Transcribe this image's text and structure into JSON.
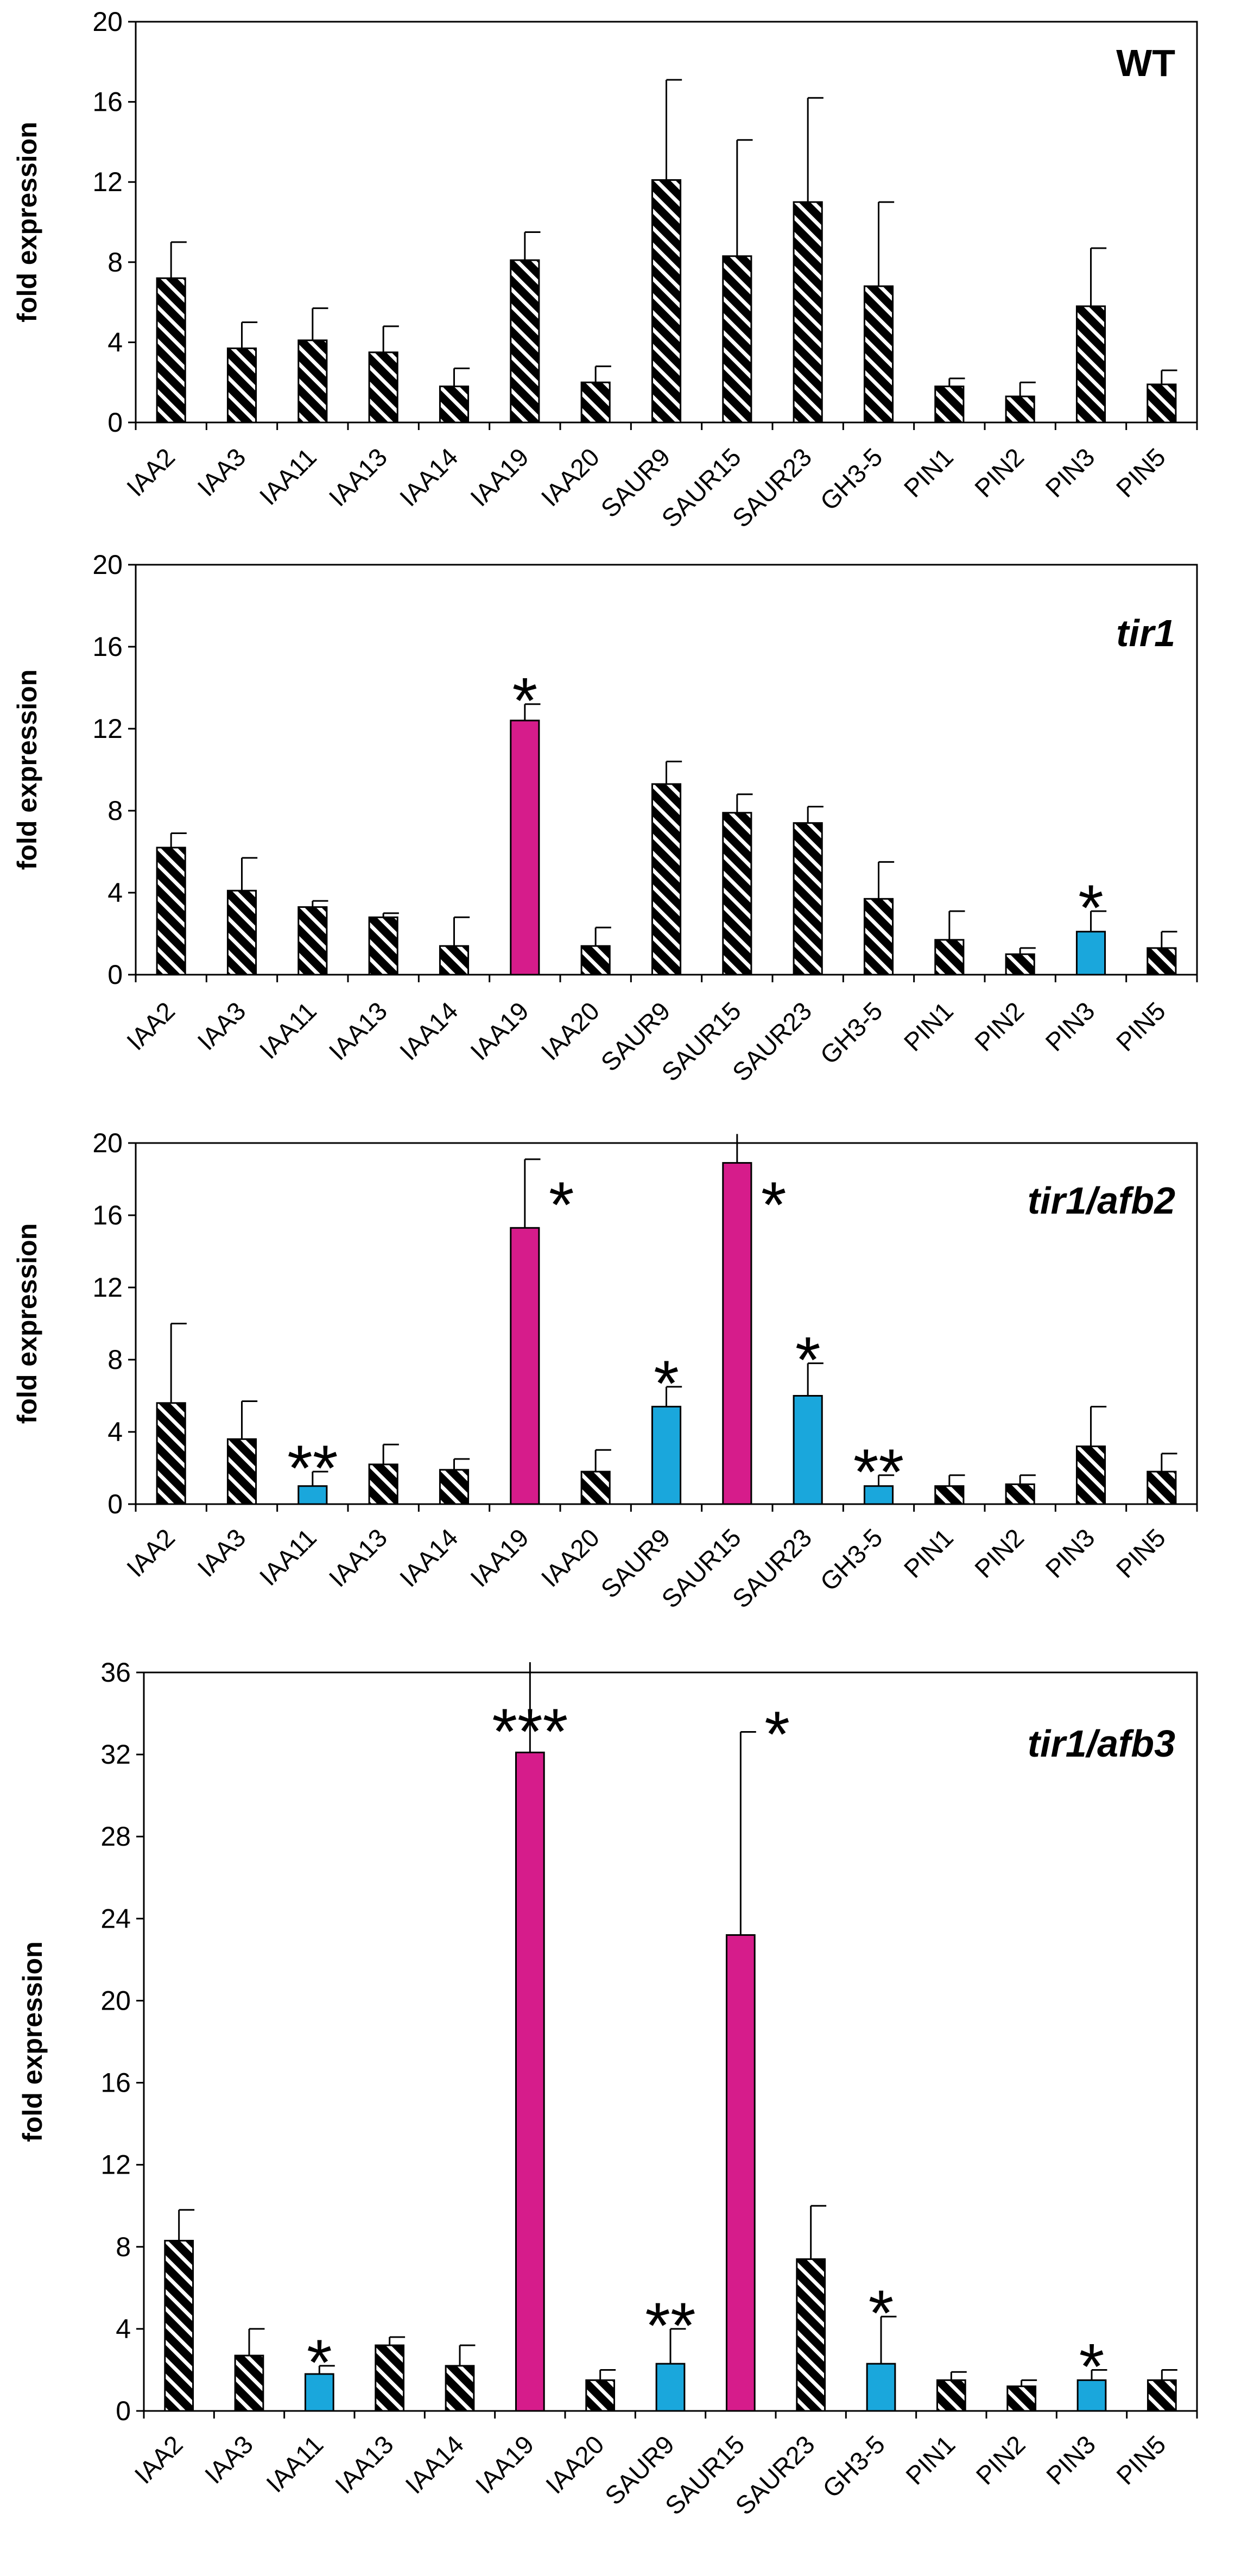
{
  "colors": {
    "hatch_dark": "#000000",
    "hatch_light": "#ffffff",
    "up_magenta": "#d61c8b",
    "down_cyan": "#1aa7dc"
  },
  "chart_data": [
    {
      "type": "bar",
      "title": "WT",
      "ylabel": "fold expression",
      "ylim": [
        0,
        20
      ],
      "yticks": [
        0,
        4,
        8,
        12,
        16,
        20
      ],
      "categories": [
        "IAA2",
        "IAA3",
        "IAA11",
        "IAA13",
        "IAA14",
        "IAA19",
        "IAA20",
        "SAUR9",
        "SAUR15",
        "SAUR23",
        "GH3-5",
        "PIN1",
        "PIN2",
        "PIN3",
        "PIN5"
      ],
      "values": [
        7.2,
        3.7,
        4.1,
        3.5,
        1.8,
        8.1,
        2.0,
        12.1,
        8.3,
        11.0,
        6.8,
        1.8,
        1.3,
        5.8,
        1.9
      ],
      "errors": [
        1.8,
        1.3,
        1.6,
        1.3,
        0.9,
        1.4,
        0.8,
        5.0,
        5.8,
        5.2,
        4.2,
        0.4,
        0.7,
        2.9,
        0.7
      ],
      "styles": [
        "hatch",
        "hatch",
        "hatch",
        "hatch",
        "hatch",
        "hatch",
        "hatch",
        "hatch",
        "hatch",
        "hatch",
        "hatch",
        "hatch",
        "hatch",
        "hatch",
        "hatch"
      ],
      "annotations": []
    },
    {
      "type": "bar",
      "title": "tir1",
      "ylabel": "fold expression",
      "ylim": [
        0,
        20
      ],
      "yticks": [
        0,
        4,
        8,
        12,
        16,
        20
      ],
      "categories": [
        "IAA2",
        "IAA3",
        "IAA11",
        "IAA13",
        "IAA14",
        "IAA19",
        "IAA20",
        "SAUR9",
        "SAUR15",
        "SAUR23",
        "GH3-5",
        "PIN1",
        "PIN2",
        "PIN3",
        "PIN5"
      ],
      "values": [
        6.2,
        4.1,
        3.3,
        2.8,
        1.4,
        12.4,
        1.4,
        9.3,
        7.9,
        7.4,
        3.7,
        1.7,
        1.0,
        2.1,
        1.3
      ],
      "errors": [
        0.7,
        1.6,
        0.3,
        0.2,
        1.4,
        0.8,
        0.9,
        1.1,
        0.9,
        0.8,
        1.8,
        1.4,
        0.3,
        1.0,
        0.8
      ],
      "styles": [
        "hatch",
        "hatch",
        "hatch",
        "hatch",
        "hatch",
        "up",
        "hatch",
        "hatch",
        "hatch",
        "hatch",
        "hatch",
        "hatch",
        "hatch",
        "down",
        "hatch"
      ],
      "annotations": [
        {
          "category": "IAA19",
          "text": "*"
        },
        {
          "category": "PIN3",
          "text": "*"
        }
      ]
    },
    {
      "type": "bar",
      "title": "tir1/afb2",
      "ylabel": "fold expression",
      "ylim": [
        0,
        20
      ],
      "yticks": [
        0,
        4,
        8,
        12,
        16,
        20
      ],
      "categories": [
        "IAA2",
        "IAA3",
        "IAA11",
        "IAA13",
        "IAA14",
        "IAA19",
        "IAA20",
        "SAUR9",
        "SAUR15",
        "SAUR23",
        "GH3-5",
        "PIN1",
        "PIN2",
        "PIN3",
        "PIN5"
      ],
      "values": [
        5.6,
        3.6,
        1.0,
        2.2,
        1.9,
        15.3,
        1.8,
        5.4,
        18.9,
        6.0,
        1.0,
        1.0,
        1.1,
        3.2,
        1.8
      ],
      "errors": [
        4.4,
        2.1,
        0.8,
        1.1,
        0.6,
        3.8,
        1.2,
        1.1,
        1.6,
        1.8,
        0.6,
        0.6,
        0.5,
        2.2,
        1.0
      ],
      "styles": [
        "hatch",
        "hatch",
        "down",
        "hatch",
        "hatch",
        "up",
        "hatch",
        "down",
        "up",
        "down",
        "down",
        "hatch",
        "hatch",
        "hatch",
        "hatch"
      ],
      "annotations": [
        {
          "category": "IAA11",
          "text": "**"
        },
        {
          "category": "IAA19",
          "text": "*"
        },
        {
          "category": "SAUR9",
          "text": "*"
        },
        {
          "category": "SAUR15",
          "text": "*"
        },
        {
          "category": "SAUR23",
          "text": "*"
        },
        {
          "category": "GH3-5",
          "text": "**"
        }
      ]
    },
    {
      "type": "bar",
      "title": "tir1/afb3",
      "ylabel": "fold expression",
      "ylim": [
        0,
        36
      ],
      "yticks": [
        0,
        4,
        8,
        12,
        16,
        20,
        24,
        28,
        32,
        36
      ],
      "categories": [
        "IAA2",
        "IAA3",
        "IAA11",
        "IAA13",
        "IAA14",
        "IAA19",
        "IAA20",
        "SAUR9",
        "SAUR15",
        "SAUR23",
        "GH3-5",
        "PIN1",
        "PIN2",
        "PIN3",
        "PIN5"
      ],
      "values": [
        8.3,
        2.7,
        1.8,
        3.2,
        2.2,
        32.1,
        1.5,
        2.3,
        23.2,
        7.4,
        2.3,
        1.5,
        1.2,
        1.5,
        1.5
      ],
      "errors": [
        1.5,
        1.3,
        0.4,
        0.4,
        1.0,
        4.4,
        0.5,
        1.7,
        9.9,
        2.6,
        2.3,
        0.4,
        0.3,
        0.5,
        0.5
      ],
      "styles": [
        "hatch",
        "hatch",
        "down",
        "hatch",
        "hatch",
        "up",
        "hatch",
        "down",
        "up",
        "hatch",
        "down",
        "hatch",
        "hatch",
        "down",
        "hatch"
      ],
      "annotations": [
        {
          "category": "IAA11",
          "text": "*"
        },
        {
          "category": "IAA19",
          "text": "***"
        },
        {
          "category": "SAUR9",
          "text": "**"
        },
        {
          "category": "SAUR15",
          "text": "*"
        },
        {
          "category": "GH3-5",
          "text": "*"
        },
        {
          "category": "PIN3",
          "text": "*"
        }
      ]
    }
  ]
}
